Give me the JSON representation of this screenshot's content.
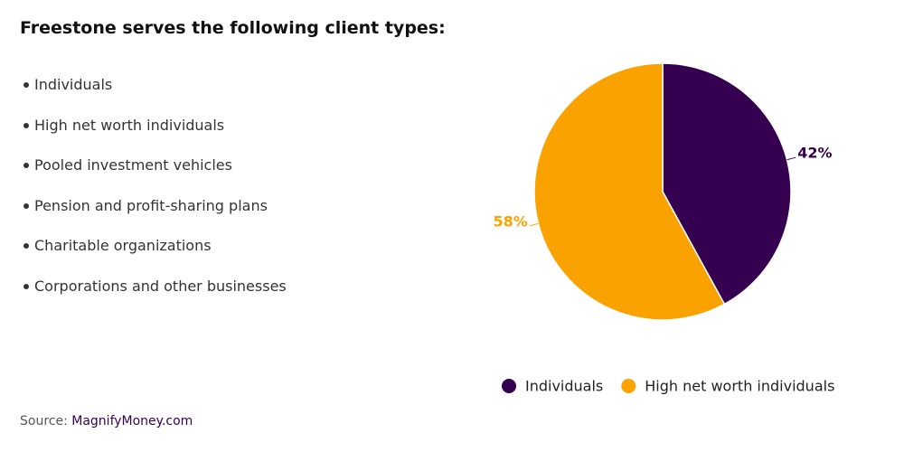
{
  "title": "Freestone serves the following client types:",
  "list": [
    "Individuals",
    "High net worth individuals",
    "Pooled investment vehicles",
    "Pension and profit-sharing plans",
    "Charitable organizations",
    "Corporations and other businesses"
  ],
  "chart_data": {
    "type": "pie",
    "categories": [
      "Individuals",
      "High net worth individuals"
    ],
    "values": [
      42,
      58
    ],
    "value_labels": [
      "42%",
      "58%"
    ],
    "colors": [
      "#35004f",
      "#f9a200"
    ]
  },
  "source": {
    "label": "Source:",
    "link": "MagnifyMoney.com"
  }
}
